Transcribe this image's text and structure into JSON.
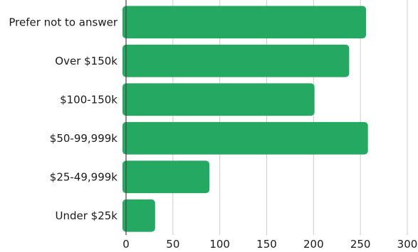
{
  "chart_data": {
    "type": "bar",
    "orientation": "horizontal",
    "categories": [
      "Prefer not to answer",
      "Over $150k",
      "$100-150k",
      "$50-99,999k",
      "$25-49,999k",
      "Under $25k"
    ],
    "values": [
      256,
      238,
      201,
      258,
      89,
      31
    ],
    "xlim": [
      0,
      300
    ],
    "xticks": [
      0,
      50,
      100,
      150,
      200,
      250,
      300
    ],
    "grid": true,
    "bar_color": "#24a862",
    "title": "",
    "xlabel": "",
    "ylabel": ""
  }
}
